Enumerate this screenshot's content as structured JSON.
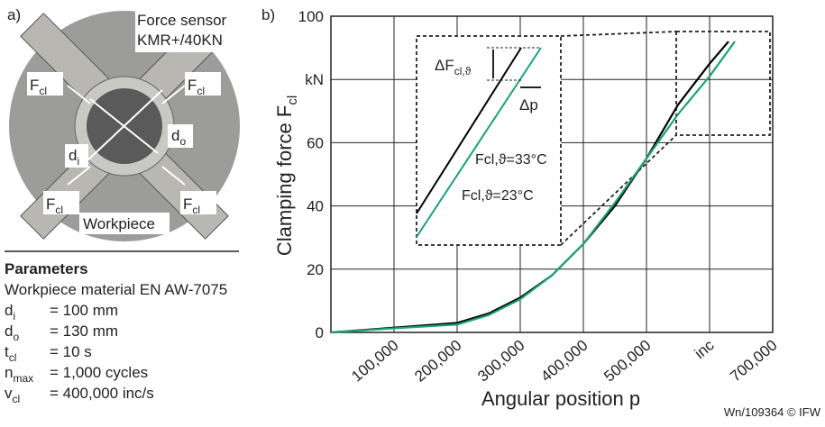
{
  "panel_a": {
    "label": "a)",
    "photo_labels": {
      "sensor": [
        "Force sensor",
        "KMR+/40KN"
      ],
      "force": {
        "text": "F",
        "sub": "cl"
      },
      "di": {
        "text": "d",
        "sub": "i"
      },
      "do": {
        "text": "d",
        "sub": "o"
      },
      "workpiece": "Workpiece"
    },
    "parameters": {
      "title": "Parameters",
      "material": "Workpiece material EN AW-7075",
      "rows": [
        {
          "symbol": "d",
          "sub": "i",
          "value": "= 100 mm"
        },
        {
          "symbol": "d",
          "sub": "o",
          "value": "= 130 mm"
        },
        {
          "symbol": "t",
          "sub": "cl",
          "value": "= 10 s"
        },
        {
          "symbol": "n",
          "sub": "max",
          "value": "= 1,000 cycles"
        },
        {
          "symbol": "v",
          "sub": "cl",
          "value": "= 400,000 inc/s"
        }
      ]
    }
  },
  "chart_data": {
    "type": "line",
    "panel_label": "b)",
    "x_label": "Angular position p",
    "y_label": {
      "text": "Clamping force F",
      "sub": "cl"
    },
    "xlim": [
      0,
      700000
    ],
    "xticks": [
      0,
      {
        "value": 100000,
        "label": "100,000"
      },
      {
        "value": 200000,
        "label": "200,000"
      },
      {
        "value": 300000,
        "label": "300,000"
      },
      {
        "value": 400000,
        "label": "400,000"
      },
      {
        "value": 500000,
        "label": "500,000"
      },
      {
        "value": 600000,
        "label": "inc"
      },
      {
        "value": 700000,
        "label": "700,000"
      }
    ],
    "ylim": [
      0,
      100
    ],
    "yticks": [
      0,
      20,
      40,
      60,
      {
        "value": 80,
        "label": "kN"
      },
      100
    ],
    "grid": true,
    "series": [
      {
        "name": "Fcl,ϑ=33°C",
        "color": "#000000",
        "x": [
          0,
          100000,
          200000,
          250000,
          300000,
          350000,
          400000,
          450000,
          500000,
          550000,
          600000,
          630000
        ],
        "values": [
          0,
          1.5,
          3,
          6,
          11,
          18,
          28,
          40,
          55,
          72,
          85,
          92
        ]
      },
      {
        "name": "Fcl,ϑ=23°C",
        "color": "#1aa37a",
        "x": [
          0,
          100000,
          200000,
          250000,
          300000,
          350000,
          400000,
          450000,
          500000,
          550000,
          600000,
          640000
        ],
        "values": [
          0,
          1.3,
          2.5,
          5.5,
          10.5,
          18,
          28,
          41,
          55,
          69,
          81,
          92
        ]
      }
    ],
    "annotations": {
      "delta_f": {
        "text": "ΔF",
        "sub": "cl,ϑ"
      },
      "delta_p": "Δp"
    },
    "credit": "Wn/109364 © IFW"
  }
}
